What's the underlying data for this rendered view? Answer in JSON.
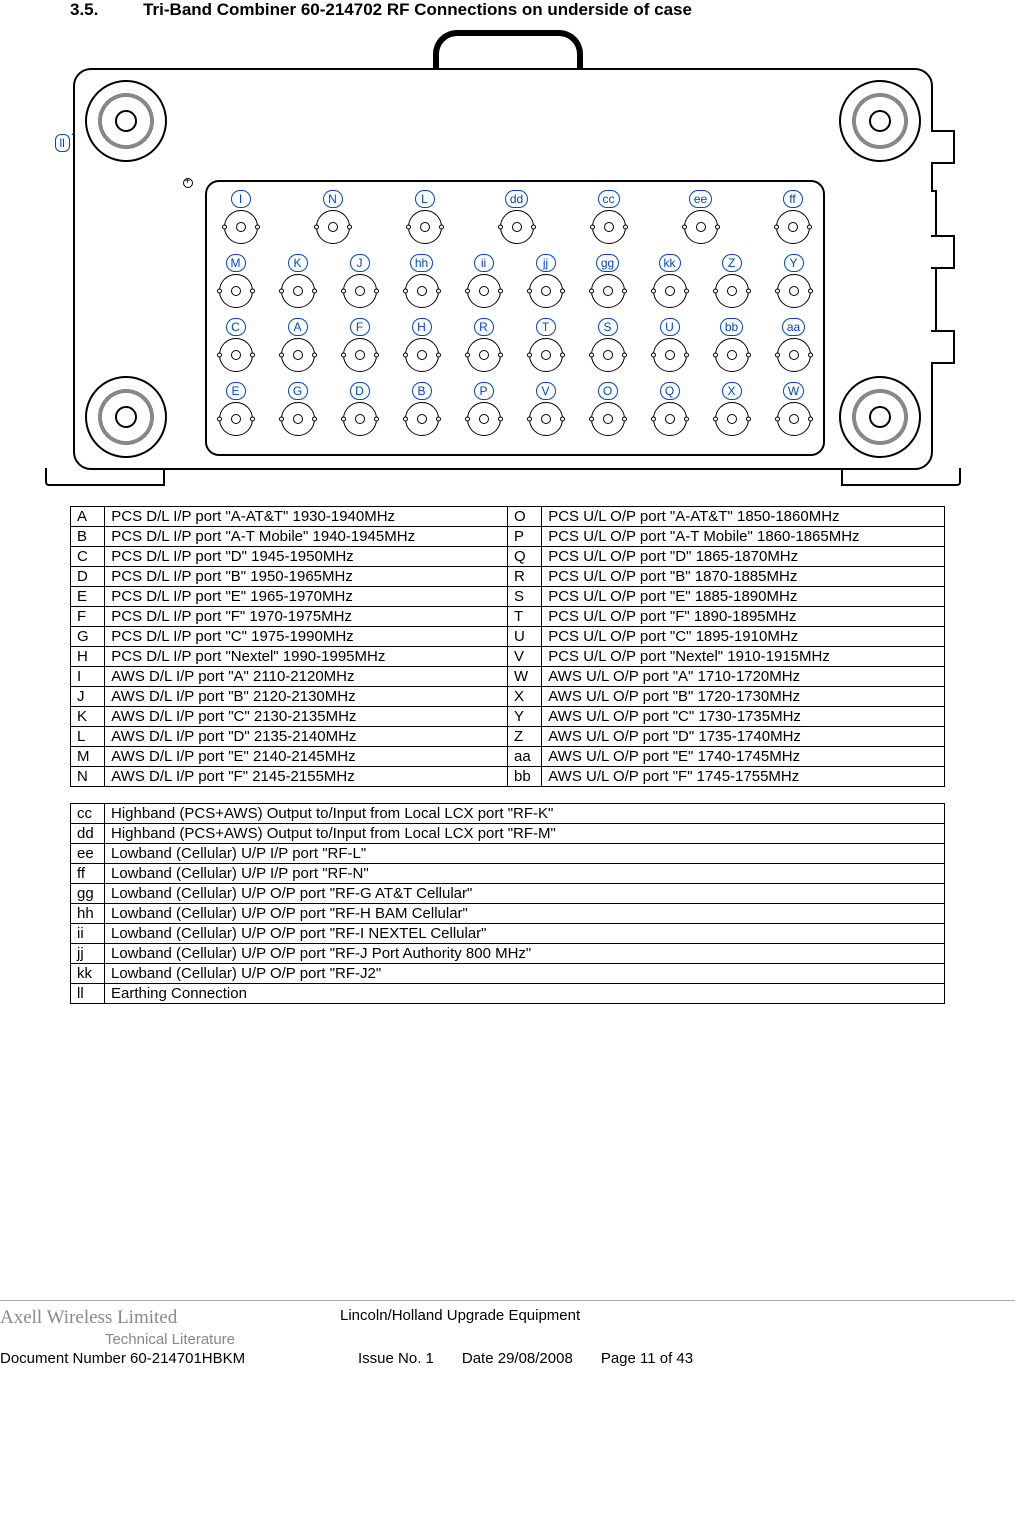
{
  "section": {
    "number": "3.5.",
    "title": "Tri-Band Combiner 60-214702 RF Connections on underside of case"
  },
  "diagram": {
    "earth_label": "ll",
    "label_color": "#0047c2",
    "rows": [
      {
        "style": "top",
        "labels": [
          "I",
          "N",
          "L",
          "dd",
          "cc",
          "ee",
          "ff"
        ]
      },
      {
        "style": "dense",
        "labels": [
          "M",
          "K",
          "J",
          "hh",
          "ii",
          "jj",
          "gg",
          "kk",
          "Z",
          "Y"
        ]
      },
      {
        "style": "dense",
        "labels": [
          "C",
          "A",
          "F",
          "H",
          "R",
          "T",
          "S",
          "U",
          "bb",
          "aa"
        ]
      },
      {
        "style": "dense",
        "labels": [
          "E",
          "G",
          "D",
          "B",
          "P",
          "V",
          "O",
          "Q",
          "X",
          "W"
        ]
      }
    ]
  },
  "table1": [
    [
      "A",
      "PCS D/L I/P port \"A-AT&T\" 1930-1940MHz",
      "O",
      "PCS U/L O/P port \"A-AT&T\" 1850-1860MHz"
    ],
    [
      "B",
      "PCS D/L I/P port \"A-T Mobile\" 1940-1945MHz",
      "P",
      "PCS U/L O/P port \"A-T Mobile\" 1860-1865MHz"
    ],
    [
      "C",
      "PCS D/L I/P port \"D\" 1945-1950MHz",
      "Q",
      "PCS U/L O/P port \"D\" 1865-1870MHz"
    ],
    [
      "D",
      "PCS D/L I/P port \"B\" 1950-1965MHz",
      "R",
      "PCS U/L O/P port \"B\" 1870-1885MHz"
    ],
    [
      "E",
      "PCS D/L I/P port \"E\" 1965-1970MHz",
      "S",
      "PCS U/L O/P port \"E\" 1885-1890MHz"
    ],
    [
      "F",
      "PCS D/L I/P port \"F\" 1970-1975MHz",
      "T",
      "PCS U/L O/P port \"F\" 1890-1895MHz"
    ],
    [
      "G",
      "PCS D/L I/P port \"C\" 1975-1990MHz",
      "U",
      "PCS U/L O/P port \"C\" 1895-1910MHz"
    ],
    [
      "H",
      "PCS D/L I/P port \"Nextel\" 1990-1995MHz",
      "V",
      "PCS U/L O/P port \"Nextel\" 1910-1915MHz"
    ],
    [
      "I",
      "AWS D/L I/P port \"A\" 2110-2120MHz",
      "W",
      "AWS U/L O/P port \"A\" 1710-1720MHz"
    ],
    [
      "J",
      "AWS D/L I/P port \"B\" 2120-2130MHz",
      "X",
      "AWS U/L O/P port \"B\" 1720-1730MHz"
    ],
    [
      "K",
      "AWS D/L I/P port \"C\" 2130-2135MHz",
      "Y",
      "AWS U/L O/P port \"C\" 1730-1735MHz"
    ],
    [
      "L",
      "AWS D/L I/P port \"D\" 2135-2140MHz",
      "Z",
      "AWS U/L O/P port \"D\" 1735-1740MHz"
    ],
    [
      "M",
      "AWS D/L I/P port \"E\" 2140-2145MHz",
      "aa",
      "AWS U/L O/P port \"E\" 1740-1745MHz"
    ],
    [
      "N",
      "AWS D/L I/P port \"F\" 2145-2155MHz",
      "bb",
      "AWS U/L O/P port \"F\" 1745-1755MHz"
    ]
  ],
  "table2": [
    [
      "cc",
      "Highband (PCS+AWS) Output to/Input from Local LCX port \"RF-K\""
    ],
    [
      "dd",
      "Highband (PCS+AWS) Output to/Input from Local LCX port \"RF-M\""
    ],
    [
      "ee",
      "Lowband (Cellular) U/P I/P port \"RF-L\""
    ],
    [
      "ff",
      "Lowband (Cellular) U/P I/P port \"RF-N\""
    ],
    [
      "gg",
      "Lowband (Cellular) U/P O/P port \"RF-G AT&T Cellular\""
    ],
    [
      "hh",
      "Lowband (Cellular) U/P O/P port \"RF-H BAM Cellular\""
    ],
    [
      "ii",
      "Lowband (Cellular) U/P O/P port \"RF-I NEXTEL Cellular\""
    ],
    [
      "jj",
      "Lowband (Cellular) U/P O/P port \"RF-J Port Authority 800 MHz\""
    ],
    [
      "kk",
      "Lowband (Cellular) U/P O/P port \"RF-J2\""
    ],
    [
      "ll",
      "Earthing Connection"
    ]
  ],
  "footer": {
    "brand": "Axell Wireless Limited",
    "brand_sub": "Technical Literature",
    "doc_title": "Lincoln/Holland Upgrade Equipment",
    "doc_num": "Document Number 60-214701HBKM",
    "issue": "Issue No. 1",
    "date": "Date 29/08/2008",
    "page": "Page 11 of 43"
  }
}
